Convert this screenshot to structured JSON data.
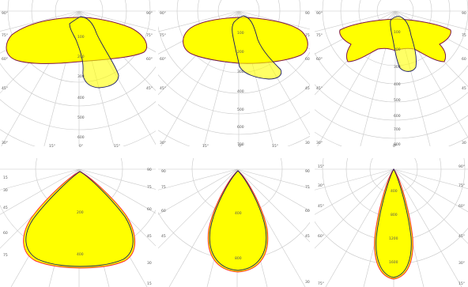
{
  "colors": {
    "fill": "#ffff00",
    "outline_a": "#ff2a2a",
    "outline_b": "#1a1a66",
    "grid": "#c8c8c8",
    "background": "#ffffff"
  },
  "panels": [
    {
      "id": "p1",
      "radial_labels": [
        "100",
        "200",
        "300",
        "400",
        "500",
        "600"
      ],
      "angle_labels_left": [
        "90°",
        "75°",
        "60°",
        "45°",
        "30°"
      ],
      "angle_labels_right": [
        "90°",
        "75°",
        "60°",
        "45°"
      ],
      "bottom_labels": [
        "15°",
        "0°",
        "15°"
      ]
    },
    {
      "id": "p2",
      "radial_labels": [
        "100",
        "200",
        "300",
        "400",
        "500",
        "600",
        "700"
      ],
      "angle_labels_left": [
        "90°",
        "75°",
        "60°",
        "45°",
        "30°"
      ],
      "angle_labels_right": [
        "90",
        "75",
        "60",
        "45",
        "30"
      ],
      "bottom_labels": [
        "15°",
        "0°",
        "15°"
      ]
    },
    {
      "id": "p3",
      "radial_labels": [
        "100",
        "200",
        "300",
        "400",
        "500",
        "600",
        "700",
        "800"
      ],
      "angle_labels_left": [
        "90°",
        "75°",
        "60°",
        "45°",
        "30°"
      ],
      "angle_labels_right": [
        "90",
        "75",
        "60",
        "45",
        "30"
      ],
      "bottom_labels": [
        "0°"
      ]
    },
    {
      "id": "p4",
      "radial_labels": [
        "200",
        "400"
      ],
      "angle_labels_left": [
        "15",
        "30",
        "45",
        "60",
        "75"
      ],
      "angle_labels_right": [
        "90",
        "75",
        "60",
        "45",
        "30",
        "15"
      ],
      "bottom_labels": []
    },
    {
      "id": "p5",
      "radial_labels": [
        "400",
        "800"
      ],
      "angle_labels_left": [
        "90",
        "75",
        "60",
        "45"
      ],
      "angle_labels_right": [
        "90",
        "75",
        "60",
        "45",
        "30"
      ],
      "bottom_labels": []
    },
    {
      "id": "p6",
      "radial_labels": [
        "400",
        "800",
        "1200",
        "1600"
      ],
      "angle_labels_left": [
        "15°",
        "30°",
        "45°",
        "60°",
        "75°"
      ],
      "angle_labels_right": [
        "90°",
        "75°",
        "60°",
        "45°",
        "30°",
        "15°"
      ],
      "bottom_labels": []
    }
  ]
}
